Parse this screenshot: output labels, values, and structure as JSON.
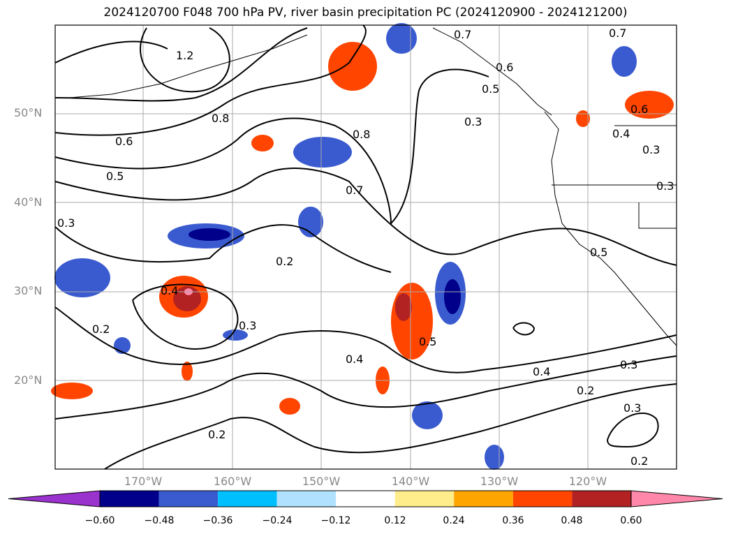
{
  "title": "2024120700 F048 700 hPa PV, river basin precipitation PC (2024120900 - 2024121200)",
  "lat_labels": [
    "50°N",
    "40°N",
    "30°N",
    "20°N"
  ],
  "lon_labels": [
    "170°W",
    "160°W",
    "150°W",
    "140°W",
    "130°W",
    "120°W"
  ],
  "contour_labels": [
    "1.2",
    "0.8",
    "0.6",
    "0.5",
    "0.3",
    "0.8",
    "0.7",
    "0.3",
    "0.7",
    "0.6",
    "0.5",
    "0.7",
    "0.6",
    "0.4",
    "0.3",
    "0.3",
    "0.5",
    "0.2",
    "0.4",
    "0.3",
    "0.2",
    "0.4",
    "0.5",
    "0.4",
    "0.3",
    "0.2",
    "0.2",
    "0.3",
    "0.2"
  ],
  "colorbar": {
    "ticks": [
      "−0.60",
      "−0.48",
      "−0.36",
      "−0.24",
      "−0.12",
      "0.12",
      "0.24",
      "0.36",
      "0.48",
      "0.60"
    ],
    "colors": [
      "#9a32cd",
      "#00008b",
      "#3a5bcf",
      "#00bfff",
      "#b0e2ff",
      "#ffffff",
      "#ffec8b",
      "#ffa500",
      "#ff4500",
      "#b22222",
      "#ff88aa"
    ]
  }
}
